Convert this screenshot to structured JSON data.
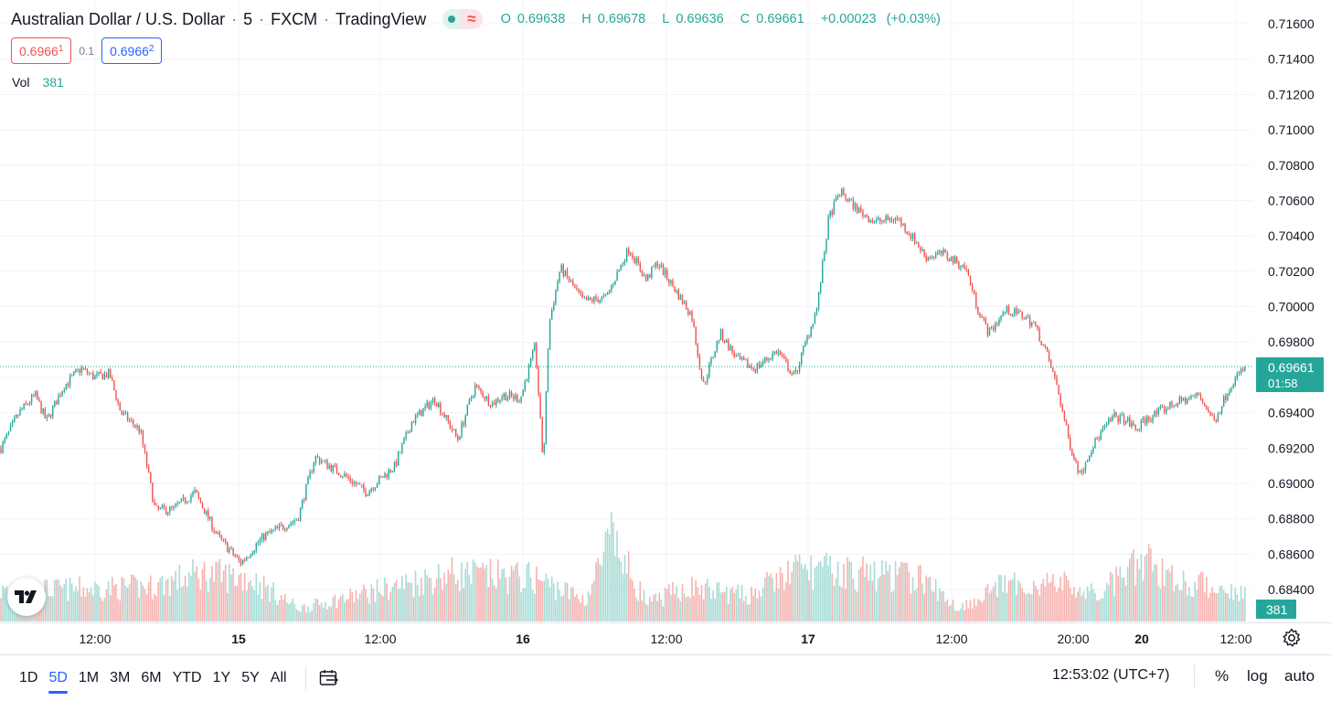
{
  "header": {
    "symbol_name": "Australian Dollar / U.S. Dollar",
    "interval": "5",
    "exchange": "FXCM",
    "source": "TradingView",
    "ohlc": {
      "open_label": "O",
      "open": "0.69638",
      "high_label": "H",
      "high": "0.69678",
      "low_label": "L",
      "low": "0.69636",
      "close_label": "C",
      "close": "0.69661",
      "change": "+0.00023",
      "change_pct": "(+0.03%)"
    }
  },
  "trade": {
    "sell_main": "0.6966",
    "sell_sup": "1",
    "spread": "0.1",
    "buy_main": "0.6966",
    "buy_sup": "2"
  },
  "volume_legend": {
    "label": "Vol",
    "value": "381"
  },
  "price_axis": {
    "labels": [
      "0.71600",
      "0.71400",
      "0.71200",
      "0.71000",
      "0.70800",
      "0.70600",
      "0.70400",
      "0.70200",
      "0.70000",
      "0.69800",
      "0.69600",
      "0.69400",
      "0.69200",
      "0.69000",
      "0.68800",
      "0.68600",
      "0.68400"
    ]
  },
  "last_price": {
    "price": "0.69661",
    "countdown": "01:58",
    "volume": "381"
  },
  "time_axis": {
    "labels": [
      "12:00",
      "15",
      "12:00",
      "16",
      "12:00",
      "17",
      "12:00",
      "20:00",
      "20",
      "12:00"
    ]
  },
  "bottom_bar": {
    "ranges": [
      "1D",
      "5D",
      "1M",
      "3M",
      "6M",
      "YTD",
      "1Y",
      "5Y",
      "All"
    ],
    "active_range": "5D",
    "clock": "12:53:02 (UTC+7)",
    "pct_label": "%",
    "log_label": "log",
    "auto_label": "auto"
  },
  "colors": {
    "up": "#26a69a",
    "down": "#ef5350",
    "up_volume": "#a8dcd6",
    "down_volume": "#f6b3b0",
    "grid": "#f0f3fa",
    "accent": "#2962ff"
  },
  "icons": [
    "indicator-status-icon",
    "goto-date-icon",
    "settings-gear-icon",
    "tradingview-logo-icon"
  ],
  "chart_data": {
    "type": "candlestick",
    "symbol": "AUDUSD",
    "timeframe_minutes": 5,
    "ylim": [
      0.6836,
      0.717
    ],
    "grid": true,
    "price_path": [
      {
        "t": 0.0,
        "p": 0.692
      },
      {
        "t": 0.016,
        "p": 0.694
      },
      {
        "t": 0.03,
        "p": 0.695
      },
      {
        "t": 0.04,
        "p": 0.6935
      },
      {
        "t": 0.055,
        "p": 0.6955
      },
      {
        "t": 0.07,
        "p": 0.6965
      },
      {
        "t": 0.082,
        "p": 0.696
      },
      {
        "t": 0.095,
        "p": 0.6962
      },
      {
        "t": 0.105,
        "p": 0.694
      },
      {
        "t": 0.122,
        "p": 0.693
      },
      {
        "t": 0.135,
        "p": 0.6885
      },
      {
        "t": 0.15,
        "p": 0.6885
      },
      {
        "t": 0.17,
        "p": 0.6895
      },
      {
        "t": 0.19,
        "p": 0.687
      },
      {
        "t": 0.21,
        "p": 0.6855
      },
      {
        "t": 0.23,
        "p": 0.687
      },
      {
        "t": 0.26,
        "p": 0.688
      },
      {
        "t": 0.275,
        "p": 0.6915
      },
      {
        "t": 0.3,
        "p": 0.6905
      },
      {
        "t": 0.32,
        "p": 0.6895
      },
      {
        "t": 0.345,
        "p": 0.691
      },
      {
        "t": 0.36,
        "p": 0.6935
      },
      {
        "t": 0.38,
        "p": 0.6948
      },
      {
        "t": 0.4,
        "p": 0.6925
      },
      {
        "t": 0.415,
        "p": 0.6955
      },
      {
        "t": 0.43,
        "p": 0.6945
      },
      {
        "t": 0.44,
        "p": 0.695
      },
      {
        "t": 0.455,
        "p": 0.6948
      },
      {
        "t": 0.468,
        "p": 0.6978
      },
      {
        "t": 0.475,
        "p": 0.691
      },
      {
        "t": 0.48,
        "p": 0.699
      },
      {
        "t": 0.49,
        "p": 0.7022
      },
      {
        "t": 0.51,
        "p": 0.7003
      },
      {
        "t": 0.53,
        "p": 0.7005
      },
      {
        "t": 0.55,
        "p": 0.7033
      },
      {
        "t": 0.565,
        "p": 0.7015
      },
      {
        "t": 0.575,
        "p": 0.7025
      },
      {
        "t": 0.59,
        "p": 0.701
      },
      {
        "t": 0.605,
        "p": 0.6995
      },
      {
        "t": 0.615,
        "p": 0.6955
      },
      {
        "t": 0.63,
        "p": 0.6985
      },
      {
        "t": 0.645,
        "p": 0.697
      },
      {
        "t": 0.66,
        "p": 0.6965
      },
      {
        "t": 0.68,
        "p": 0.6975
      },
      {
        "t": 0.695,
        "p": 0.696
      },
      {
        "t": 0.705,
        "p": 0.698
      },
      {
        "t": 0.715,
        "p": 0.7
      },
      {
        "t": 0.725,
        "p": 0.705
      },
      {
        "t": 0.735,
        "p": 0.7065
      },
      {
        "t": 0.75,
        "p": 0.7055
      },
      {
        "t": 0.765,
        "p": 0.7048
      },
      {
        "t": 0.785,
        "p": 0.705
      },
      {
        "t": 0.8,
        "p": 0.7038
      },
      {
        "t": 0.81,
        "p": 0.7028
      },
      {
        "t": 0.825,
        "p": 0.703
      },
      {
        "t": 0.845,
        "p": 0.7022
      },
      {
        "t": 0.855,
        "p": 0.7
      },
      {
        "t": 0.865,
        "p": 0.6985
      },
      {
        "t": 0.88,
        "p": 0.6998
      },
      {
        "t": 0.895,
        "p": 0.6995
      },
      {
        "t": 0.905,
        "p": 0.699
      },
      {
        "t": 0.915,
        "p": 0.6975
      },
      {
        "t": 0.925,
        "p": 0.6955
      },
      {
        "t": 0.935,
        "p": 0.6925
      },
      {
        "t": 0.945,
        "p": 0.6905
      },
      {
        "t": 0.955,
        "p": 0.692
      },
      {
        "t": 0.965,
        "p": 0.693
      },
      {
        "t": 0.975,
        "p": 0.6938
      },
      {
        "t": 0.985,
        "p": 0.6936
      },
      {
        "t": 0.995,
        "p": 0.693
      },
      {
        "t": 1.0,
        "p": 0.6935
      }
    ],
    "price_path_tail": [
      {
        "t": 0.0,
        "p": 0.6935
      },
      {
        "t": 0.3,
        "p": 0.6945
      },
      {
        "t": 0.55,
        "p": 0.695
      },
      {
        "t": 0.7,
        "p": 0.6935
      },
      {
        "t": 0.85,
        "p": 0.6955
      },
      {
        "t": 1.0,
        "p": 0.6966
      }
    ],
    "volume_levels": [
      {
        "t": 0.0,
        "v": 0.35
      },
      {
        "t": 0.12,
        "v": 0.4
      },
      {
        "t": 0.16,
        "v": 0.55
      },
      {
        "t": 0.2,
        "v": 0.5
      },
      {
        "t": 0.24,
        "v": 0.15
      },
      {
        "t": 0.3,
        "v": 0.35
      },
      {
        "t": 0.36,
        "v": 0.55
      },
      {
        "t": 0.43,
        "v": 0.5
      },
      {
        "t": 0.47,
        "v": 0.25
      },
      {
        "t": 0.49,
        "v": 0.95
      },
      {
        "t": 0.52,
        "v": 0.2
      },
      {
        "t": 0.55,
        "v": 0.4
      },
      {
        "t": 0.6,
        "v": 0.3
      },
      {
        "t": 0.64,
        "v": 0.6
      },
      {
        "t": 0.7,
        "v": 0.55
      },
      {
        "t": 0.74,
        "v": 0.5
      },
      {
        "t": 0.77,
        "v": 0.15
      },
      {
        "t": 0.8,
        "v": 0.4
      },
      {
        "t": 0.85,
        "v": 0.45
      },
      {
        "t": 0.88,
        "v": 0.3
      },
      {
        "t": 0.92,
        "v": 0.7
      },
      {
        "t": 0.95,
        "v": 0.45
      },
      {
        "t": 1.0,
        "v": 0.35
      }
    ],
    "current_price": 0.69661,
    "current_volume": 381
  }
}
